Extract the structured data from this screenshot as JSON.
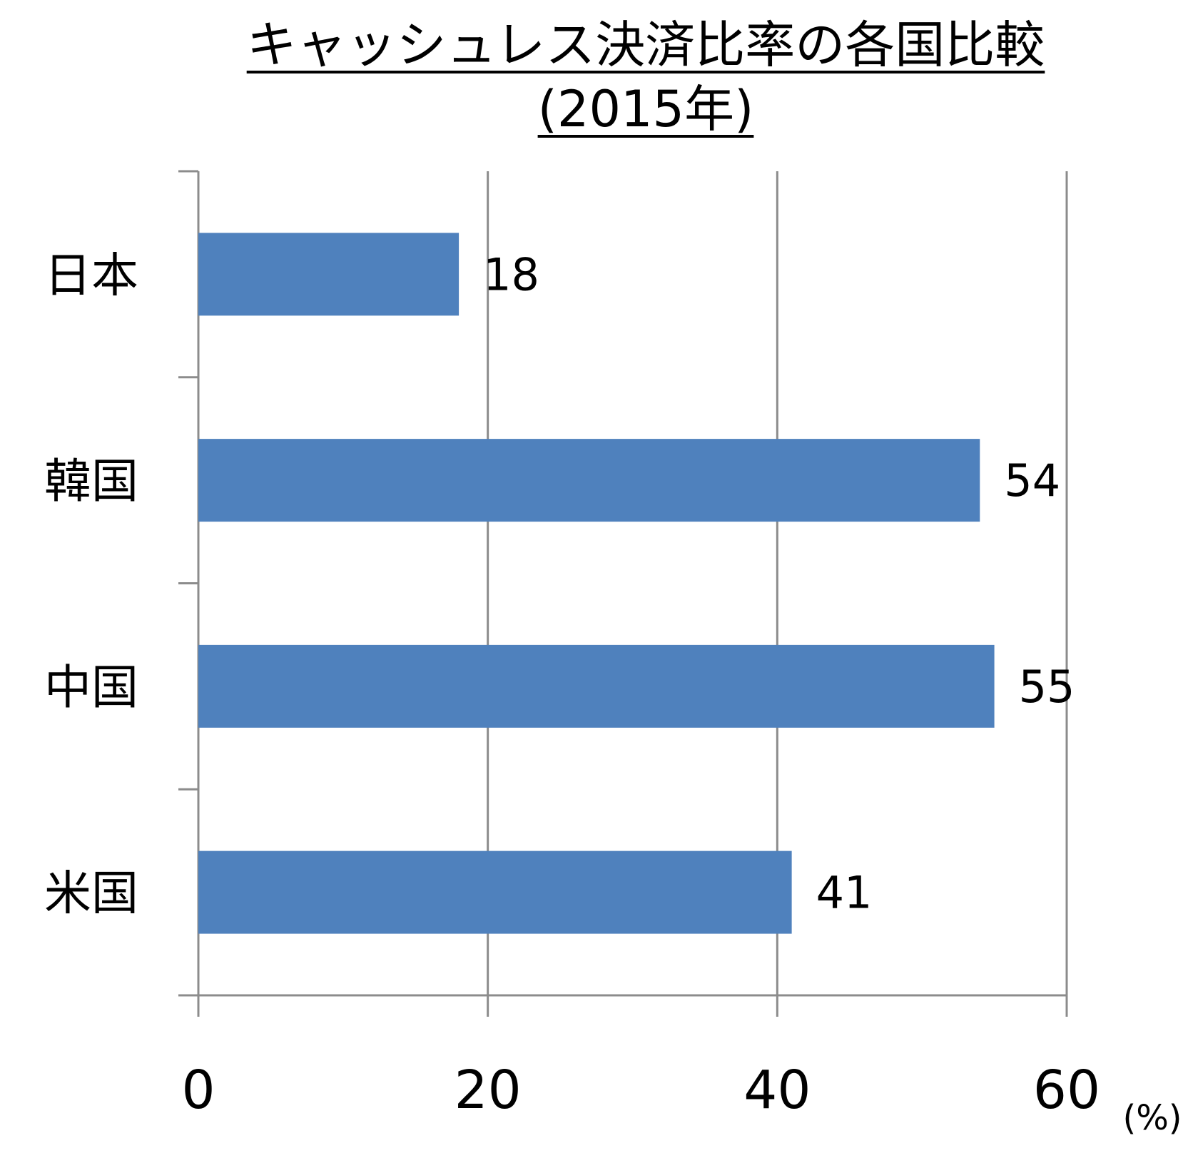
{
  "chart_data": {
    "type": "bar",
    "orientation": "horizontal",
    "title_line1": "キャッシュレス決済比率の各国比較",
    "title_line2": "(2015年)",
    "categories": [
      "日本",
      "韓国",
      "中国",
      "米国"
    ],
    "values": [
      18,
      54,
      55,
      41
    ],
    "value_labels": [
      "18",
      "54",
      "55",
      "41"
    ],
    "xlim": [
      0,
      60
    ],
    "x_ticks": [
      0,
      20,
      40,
      60
    ],
    "x_tick_labels": [
      "0",
      "20",
      "40",
      "60"
    ],
    "x_unit": "(%)",
    "grid": "vertical",
    "bar_color": "#4f81bd",
    "grid_color": "#8c8c8c"
  }
}
